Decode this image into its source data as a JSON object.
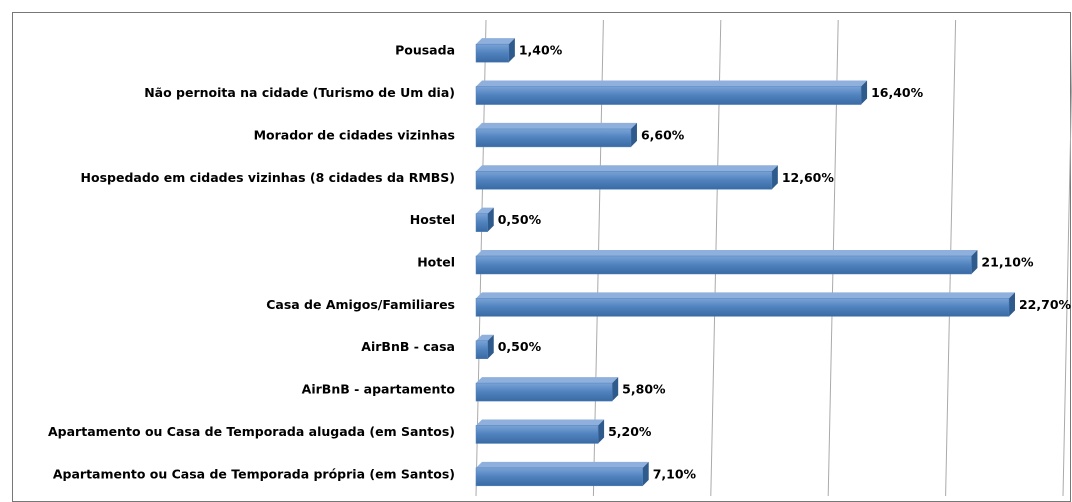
{
  "chart_data": {
    "type": "bar",
    "orientation": "horizontal",
    "categories": [
      "Pousada",
      "Não pernoita na cidade (Turismo de Um dia)",
      "Morador de cidades vizinhas",
      "Hospedado em cidades vizinhas (8 cidades da RMBS)",
      "Hostel",
      "Hotel",
      "Casa de Amigos/Familiares",
      "AirBnB - casa",
      "AirBnB - apartamento",
      "Apartamento ou Casa de Temporada alugada (em Santos)",
      "Apartamento ou Casa de Temporada própria (em Santos)"
    ],
    "values": [
      1.4,
      16.4,
      6.6,
      12.6,
      0.5,
      21.1,
      22.7,
      0.5,
      5.8,
      5.2,
      7.1
    ],
    "value_labels": [
      "1,40%",
      "16,40%",
      "6,60%",
      "12,60%",
      "0,50%",
      "21,10%",
      "22,70%",
      "0,50%",
      "5,80%",
      "5,20%",
      "7,10%"
    ],
    "color": "#4f81bd",
    "xlim": [
      0,
      25
    ],
    "xticks": [
      0,
      5,
      10,
      15,
      20,
      25
    ],
    "grid": true
  }
}
